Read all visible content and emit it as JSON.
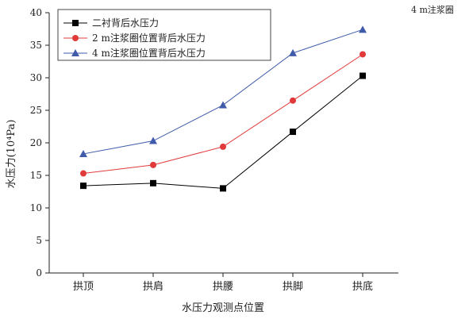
{
  "corner_note": "4 m注浆圈",
  "chart_data": {
    "type": "line",
    "xlabel": "水压力观测点位置",
    "ylabel": "水压力(10⁴Pa)",
    "categories": [
      "拱顶",
      "拱肩",
      "拱腰",
      "拱脚",
      "拱底"
    ],
    "ylim": [
      0,
      40
    ],
    "yticks": [
      0,
      5,
      10,
      15,
      20,
      25,
      30,
      35,
      40
    ],
    "grid": false,
    "legend_position": "top-left",
    "series": [
      {
        "name": "二衬背后水压力",
        "values": [
          13.4,
          13.8,
          13.0,
          21.7,
          30.3
        ],
        "color": "#000000",
        "marker": "square"
      },
      {
        "name": "2 m注浆圈位置背后水压力",
        "values": [
          15.3,
          16.6,
          19.4,
          26.5,
          33.6
        ],
        "color": "#e03a3a",
        "marker": "circle"
      },
      {
        "name": "4 m注浆圈位置背后水压力",
        "values": [
          18.3,
          20.3,
          25.8,
          33.8,
          37.4
        ],
        "color": "#3f5ba9",
        "marker": "triangle"
      }
    ]
  }
}
